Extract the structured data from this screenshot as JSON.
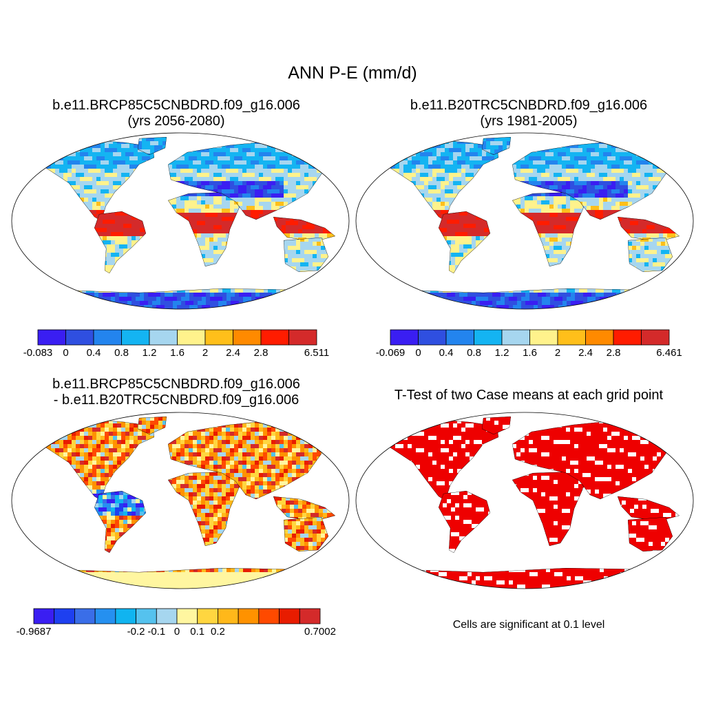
{
  "main_title": "ANN P-E (mm/d)",
  "colors": {
    "case_scale": [
      "#3a1ef2",
      "#2f4fe0",
      "#2384ee",
      "#14b4f2",
      "#a6d6ef",
      "#fff28c",
      "#ffbf1a",
      "#ff8a00",
      "#ff1c00",
      "#d42a2a"
    ],
    "diff_scale": [
      "#3a1ef2",
      "#1e40f0",
      "#3a6ee8",
      "#2590f0",
      "#10b4f0",
      "#55c2ee",
      "#a6d6ef",
      "#fff6a0",
      "#ffd640",
      "#ffb81a",
      "#ff9200",
      "#ff4a00",
      "#e81c00",
      "#d42a2a"
    ],
    "ocean": "#ffffff",
    "significant": "#ee0000"
  },
  "panels": [
    {
      "id": "case1",
      "title_line1": "b.e11.BRCP85C5CNBDRD.f09_g16.006",
      "title_line2": "(yrs 2056-2080)",
      "colorbar_labels": [
        "-0.083",
        "0",
        "0.4",
        "0.8",
        "1.2",
        "1.6",
        "2",
        "2.4",
        "2.8",
        "6.511"
      ]
    },
    {
      "id": "case2",
      "title_line1": "b.e11.B20TRC5CNBDRD.f09_g16.006",
      "title_line2": "(yrs 1981-2005)",
      "colorbar_labels": [
        "-0.069",
        "0",
        "0.4",
        "0.8",
        "1.2",
        "1.6",
        "2",
        "2.4",
        "2.8",
        "6.461"
      ]
    },
    {
      "id": "difference",
      "title_line1": "b.e11.BRCP85C5CNBDRD.f09_g16.006",
      "title_line2": "- b.e11.B20TRC5CNBDRD.f09_g16.006",
      "colorbar_labels": [
        "-0.9687",
        "-0.2",
        "-0.1",
        "0",
        "0.1",
        "0.2",
        "0.7002"
      ]
    },
    {
      "id": "ttest",
      "title_line1": "T-Test of two Case means at each grid point",
      "note": "Cells are significant at 0.1 level"
    }
  ]
}
